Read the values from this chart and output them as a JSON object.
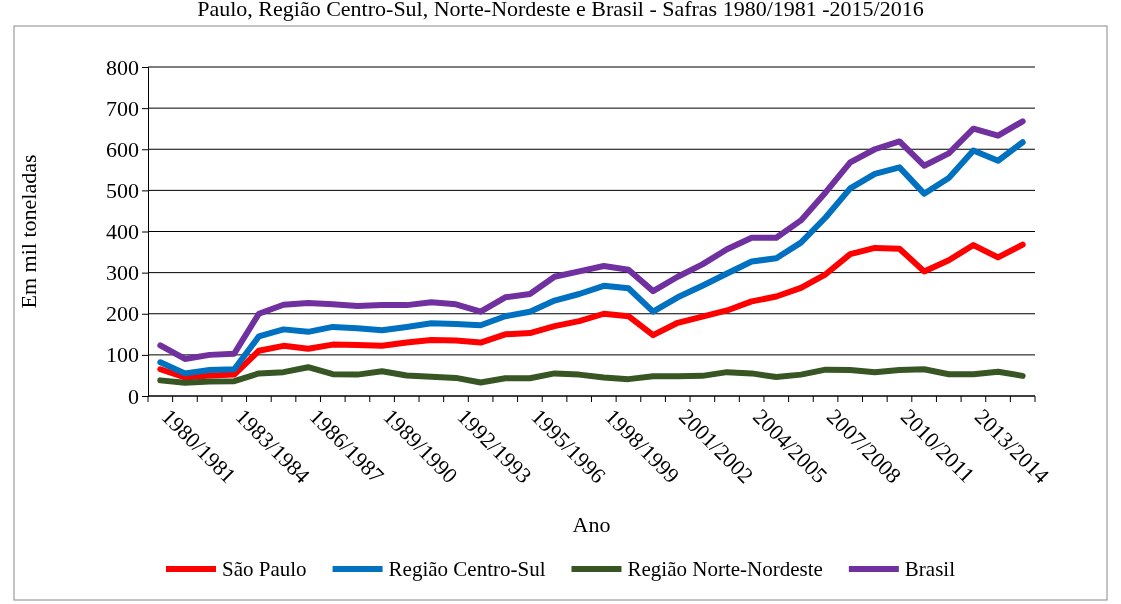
{
  "chart_data": {
    "type": "line",
    "title": "Paulo, Região Centro-Sul, Norte-Nordeste e Brasil - Safras 1980/1981 -2015/2016",
    "xlabel": "Ano",
    "ylabel": "Em mil toneladas",
    "categories": [
      "1980/1981",
      null,
      null,
      "1983/1984",
      null,
      null,
      "1986/1987",
      null,
      null,
      "1989/1990",
      null,
      null,
      "1992/1993",
      null,
      null,
      "1995/1996",
      null,
      null,
      "1998/1999",
      null,
      null,
      "2001/2002",
      null,
      null,
      "2004/2005",
      null,
      null,
      "2007/2008",
      null,
      null,
      "2010/2011",
      null,
      null,
      "2013/2014",
      null,
      null
    ],
    "ylim": [
      0,
      800
    ],
    "yticks": [
      0,
      100,
      200,
      300,
      400,
      500,
      600,
      700,
      800
    ],
    "grid": "y",
    "legend": "bottom",
    "marker": "none",
    "line_style": "solid",
    "series": [
      {
        "name": "São Paulo",
        "color": "#ff0000",
        "values": [
          65,
          45,
          50,
          52,
          110,
          122,
          115,
          125,
          124,
          122,
          130,
          136,
          135,
          130,
          150,
          153,
          170,
          182,
          200,
          194,
          148,
          178,
          193,
          208,
          230,
          242,
          263,
          296,
          345,
          360,
          358,
          303,
          330,
          367,
          337,
          368
        ]
      },
      {
        "name": "Região Centro-Sul",
        "color": "#0070c0",
        "values": [
          82,
          55,
          63,
          65,
          145,
          162,
          156,
          168,
          165,
          160,
          168,
          177,
          175,
          172,
          194,
          205,
          232,
          248,
          268,
          262,
          205,
          240,
          268,
          298,
          327,
          335,
          373,
          434,
          505,
          540,
          556,
          492,
          530,
          597,
          572,
          617
        ]
      },
      {
        "name": "Região Norte-Nordeste",
        "color": "#375623",
        "values": [
          38,
          32,
          35,
          36,
          55,
          58,
          70,
          53,
          52,
          60,
          50,
          47,
          44,
          33,
          43,
          43,
          55,
          52,
          45,
          41,
          48,
          48,
          49,
          58,
          55,
          46,
          52,
          64,
          63,
          58,
          63,
          65,
          53,
          53,
          59,
          49
        ]
      },
      {
        "name": "Brasil",
        "color": "#7030a0",
        "values": [
          123,
          90,
          100,
          103,
          200,
          222,
          226,
          223,
          219,
          221,
          221,
          228,
          223,
          205,
          240,
          248,
          290,
          303,
          316,
          307,
          255,
          290,
          320,
          357,
          385,
          385,
          427,
          495,
          568,
          600,
          619,
          560,
          590,
          650,
          633,
          668
        ]
      }
    ]
  }
}
